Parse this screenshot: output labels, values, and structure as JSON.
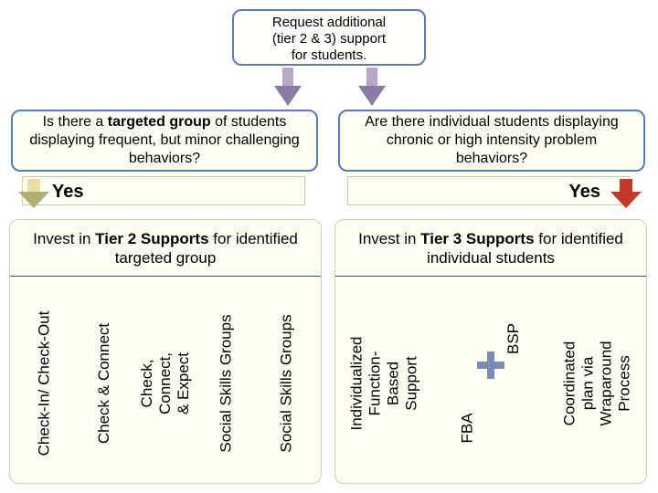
{
  "colors": {
    "boxBorder": "#5a7bb5",
    "boxBg": "#fefef4",
    "supportBg": "#fefef4",
    "supportBorder": "#bdbd99",
    "arrowPurpleDark": "#8b7aa5",
    "arrowPurpleLight": "#b8a8c8",
    "arrowRed": "#c43a2a",
    "arrowYellowStem": "#e8dfa0",
    "arrowYellowHead": "#b0b070"
  },
  "top": {
    "line1_a": "Request additional",
    "line2": "(tier 2 & 3) ",
    "line2_b": "support",
    "line3": "for students."
  },
  "q_left_html": "Is there a <b>targeted group</b> of students displaying frequent, but minor challenging behaviors?",
  "q_right_html": "Are there individual students displaying chronic or high intensity problem behaviors?",
  "yes": "Yes",
  "invest_left_html": "Invest in <b>Tier 2 Supports</b> for identified targeted group",
  "invest_right_html": "Invest in <b>Tier 3 Supports</b> for identified individual students",
  "tier2": [
    "Check-In/ Check-Out",
    "Check & Connect",
    "Check, Connect, & Expect",
    "Social Skills Groups",
    "Social Skills Groups"
  ],
  "tier3": {
    "col1": "Individualized Function-Based Support",
    "col2a": "FBA",
    "col2b": "BSP",
    "col3": "Coordinated plan via Wraparound Process"
  }
}
